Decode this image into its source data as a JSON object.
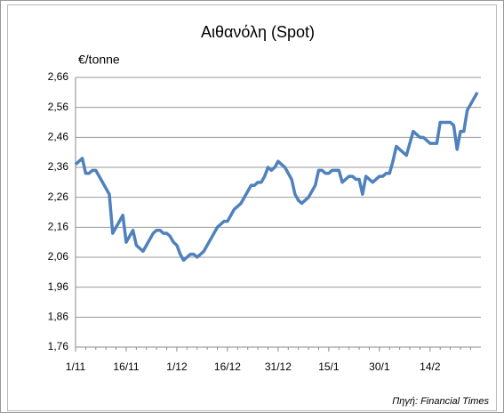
{
  "chart_data": {
    "type": "line",
    "title": "Αιθανόλη (Spot)",
    "y_label": "€/tonne",
    "source": "Πηγή: Financial Times",
    "categories": [
      "1/11",
      null,
      null,
      null,
      null,
      null,
      null,
      null,
      null,
      null,
      null,
      null,
      null,
      null,
      null,
      "16/11",
      null,
      null,
      null,
      null,
      null,
      null,
      null,
      null,
      null,
      null,
      null,
      null,
      null,
      null,
      "1/12",
      null,
      null,
      null,
      null,
      null,
      null,
      null,
      null,
      null,
      null,
      null,
      null,
      null,
      null,
      "16/12",
      null,
      null,
      null,
      null,
      null,
      null,
      null,
      null,
      null,
      null,
      null,
      null,
      null,
      null,
      "31/12",
      null,
      null,
      null,
      null,
      null,
      null,
      null,
      null,
      null,
      null,
      null,
      null,
      null,
      null,
      "15/1",
      null,
      null,
      null,
      null,
      null,
      null,
      null,
      null,
      null,
      null,
      null,
      null,
      null,
      null,
      "30/1",
      null,
      null,
      null,
      null,
      null,
      null,
      null,
      null,
      null,
      null,
      null,
      null,
      null,
      null,
      "14/2",
      null,
      null,
      null,
      null,
      null,
      null,
      null,
      null,
      null,
      null,
      null,
      null,
      null,
      null
    ],
    "values": [
      2.37,
      2.38,
      2.39,
      2.34,
      2.34,
      2.35,
      2.35,
      2.33,
      2.31,
      2.29,
      2.27,
      2.14,
      2.16,
      2.18,
      2.2,
      2.11,
      2.13,
      2.15,
      2.1,
      2.09,
      2.08,
      2.1,
      2.12,
      2.14,
      2.15,
      2.15,
      2.14,
      2.14,
      2.13,
      2.11,
      2.1,
      2.07,
      2.05,
      2.06,
      2.07,
      2.07,
      2.06,
      2.07,
      2.08,
      2.1,
      2.12,
      2.14,
      2.16,
      2.17,
      2.18,
      2.18,
      2.2,
      2.22,
      2.23,
      2.24,
      2.26,
      2.28,
      2.3,
      2.3,
      2.31,
      2.31,
      2.33,
      2.36,
      2.35,
      2.36,
      2.38,
      2.37,
      2.36,
      2.34,
      2.32,
      2.27,
      2.25,
      2.24,
      2.25,
      2.26,
      2.28,
      2.3,
      2.35,
      2.35,
      2.34,
      2.34,
      2.35,
      2.35,
      2.35,
      2.31,
      2.32,
      2.33,
      2.33,
      2.32,
      2.32,
      2.27,
      2.33,
      2.32,
      2.31,
      2.32,
      2.33,
      2.33,
      2.34,
      2.34,
      2.38,
      2.43,
      2.42,
      2.41,
      2.4,
      2.44,
      2.48,
      2.47,
      2.46,
      2.46,
      2.45,
      2.44,
      2.44,
      2.44,
      2.51,
      2.51,
      2.51,
      2.51,
      2.5,
      2.42,
      2.48,
      2.48,
      2.55,
      2.57,
      2.59,
      2.61
    ],
    "color": "#4f81bd",
    "ylim": [
      1.76,
      2.66
    ],
    "yticks": [
      {
        "value": 1.76,
        "label": "1,76"
      },
      {
        "value": 1.86,
        "label": "1,86"
      },
      {
        "value": 1.96,
        "label": "1,96"
      },
      {
        "value": 2.06,
        "label": "2,06"
      },
      {
        "value": 2.16,
        "label": "2,16"
      },
      {
        "value": 2.26,
        "label": "2,26"
      },
      {
        "value": 2.36,
        "label": "2,36"
      },
      {
        "value": 2.46,
        "label": "2,46"
      },
      {
        "value": 2.56,
        "label": "2,56"
      },
      {
        "value": 2.66,
        "label": "2,66"
      }
    ],
    "grid": true
  }
}
